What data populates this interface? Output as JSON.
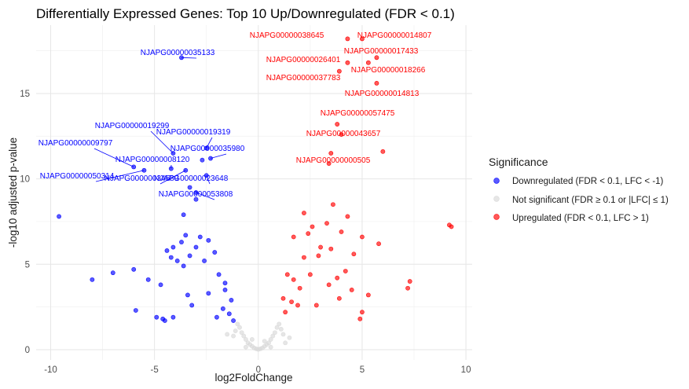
{
  "chart_data": {
    "type": "scatter",
    "title": "Differentially Expressed Genes: Top 10 Up/Downregulated (FDR < 0.1)",
    "xlabel": "log2FoldChange",
    "ylabel": "-log10 adjusted p-value",
    "xlim": [
      -10.7,
      10.3
    ],
    "ylim": [
      -0.6,
      19.0
    ],
    "xticks": [
      -10,
      -5,
      0,
      5,
      10
    ],
    "yticks": [
      0,
      5,
      10,
      15
    ],
    "grid": true,
    "legend_position": "right",
    "legend": {
      "title": "Significance",
      "entries": [
        "Downregulated (FDR < 0.1, LFC < -1)",
        "Not significant (FDR ≥ 0.1 or |LFC| ≤ 1)",
        "Upregulated (FDR < 0.1, LFC > 1)"
      ]
    },
    "colors": {
      "Downregulated": "#0000ff",
      "Not significant": "#d9d9d9",
      "Upregulated": "#ff0000"
    },
    "series": [
      {
        "name": "Downregulated (FDR < 0.1, LFC < -1)",
        "points": [
          [
            -9.6,
            7.8
          ],
          [
            -8.0,
            4.1
          ],
          [
            -7.0,
            4.5
          ],
          [
            -6.0,
            4.7
          ],
          [
            -5.9,
            2.3
          ],
          [
            -5.3,
            4.1
          ],
          [
            -4.9,
            1.9
          ],
          [
            -4.7,
            3.8
          ],
          [
            -4.6,
            1.8
          ],
          [
            -4.5,
            1.7
          ],
          [
            -4.1,
            1.9
          ],
          [
            -4.4,
            5.8
          ],
          [
            -4.1,
            6.0
          ],
          [
            -4.2,
            5.4
          ],
          [
            -3.9,
            5.2
          ],
          [
            -3.7,
            6.3
          ],
          [
            -3.6,
            4.9
          ],
          [
            -3.5,
            6.7
          ],
          [
            -3.3,
            5.5
          ],
          [
            -3.4,
            3.2
          ],
          [
            -3.2,
            2.6
          ],
          [
            -3.0,
            6.0
          ],
          [
            -2.8,
            6.6
          ],
          [
            -2.6,
            5.2
          ],
          [
            -2.4,
            6.4
          ],
          [
            -2.4,
            3.3
          ],
          [
            -2.1,
            5.7
          ],
          [
            -1.9,
            4.4
          ],
          [
            -1.6,
            3.5
          ],
          [
            -1.3,
            2.9
          ],
          [
            -3.3,
            9.5
          ],
          [
            -3.6,
            7.9
          ],
          [
            -3.0,
            8.8
          ],
          [
            -2.7,
            11.1
          ],
          [
            -1.6,
            3.9
          ],
          [
            -1.7,
            2.4
          ],
          [
            -1.4,
            2.1
          ],
          [
            -1.2,
            1.7
          ],
          [
            -2.0,
            1.9
          ]
        ]
      },
      {
        "name": "Upregulated (FDR < 0.1, LFC > 1)",
        "points": [
          [
            9.2,
            7.3
          ],
          [
            9.3,
            7.2
          ],
          [
            7.3,
            4.0
          ],
          [
            7.2,
            3.6
          ],
          [
            6.0,
            11.6
          ],
          [
            5.8,
            6.2
          ],
          [
            5.3,
            3.2
          ],
          [
            5.0,
            6.6
          ],
          [
            5.0,
            2.2
          ],
          [
            4.9,
            1.8
          ],
          [
            4.6,
            5.6
          ],
          [
            4.5,
            3.5
          ],
          [
            4.3,
            7.8
          ],
          [
            4.2,
            4.6
          ],
          [
            4.0,
            6.9
          ],
          [
            3.9,
            3.0
          ],
          [
            3.8,
            4.2
          ],
          [
            3.6,
            8.5
          ],
          [
            3.5,
            5.9
          ],
          [
            3.4,
            3.8
          ],
          [
            3.3,
            7.4
          ],
          [
            3.0,
            6.0
          ],
          [
            2.9,
            5.5
          ],
          [
            2.8,
            2.6
          ],
          [
            2.6,
            7.2
          ],
          [
            2.5,
            4.4
          ],
          [
            2.4,
            6.8
          ],
          [
            2.2,
            5.4
          ],
          [
            2.0,
            3.6
          ],
          [
            1.9,
            2.6
          ],
          [
            1.7,
            4.1
          ],
          [
            1.6,
            2.8
          ],
          [
            1.4,
            4.4
          ],
          [
            1.3,
            2.2
          ],
          [
            1.2,
            3.0
          ],
          [
            3.4,
            10.9
          ],
          [
            1.7,
            6.6
          ],
          [
            2.2,
            8.0
          ]
        ]
      },
      {
        "name": "Not significant (FDR ≥ 0.1 or |LFC| ≤ 1)",
        "points": [
          [
            -1.0,
            1.5
          ],
          [
            -0.9,
            1.3
          ],
          [
            -0.8,
            1.0
          ],
          [
            -0.7,
            0.8
          ],
          [
            -0.6,
            0.6
          ],
          [
            -0.5,
            0.4
          ],
          [
            -0.4,
            0.3
          ],
          [
            -0.3,
            0.2
          ],
          [
            -0.2,
            0.1
          ],
          [
            -0.1,
            0.05
          ],
          [
            0.0,
            0.02
          ],
          [
            0.1,
            0.05
          ],
          [
            0.2,
            0.1
          ],
          [
            0.3,
            0.2
          ],
          [
            0.4,
            0.3
          ],
          [
            0.5,
            0.4
          ],
          [
            0.6,
            0.6
          ],
          [
            0.7,
            0.8
          ],
          [
            0.8,
            1.0
          ],
          [
            0.9,
            1.3
          ],
          [
            1.0,
            1.5
          ],
          [
            1.1,
            1.2
          ],
          [
            1.2,
            0.9
          ],
          [
            -1.1,
            1.1
          ],
          [
            -1.2,
            0.8
          ],
          [
            -0.6,
            0.15
          ],
          [
            0.6,
            0.15
          ],
          [
            -1.5,
            0.9
          ],
          [
            1.5,
            0.7
          ],
          [
            -0.3,
            0.6
          ],
          [
            0.3,
            0.5
          ],
          [
            1.3,
            0.4
          ]
        ]
      }
    ],
    "labels_down": [
      {
        "text": "NJAPG00000035133",
        "x": -3.7,
        "y": 17.1
      },
      {
        "text": "NJAPG00000019299",
        "x": -4.1,
        "y": 11.5
      },
      {
        "text": "NJAPG00000019319",
        "x": -2.5,
        "y": 11.8
      },
      {
        "text": "NJAPG00000009797",
        "x": -6.0,
        "y": 10.7
      },
      {
        "text": "NJAPG00000035980",
        "x": -2.3,
        "y": 11.2
      },
      {
        "text": "NJAPG00000008120",
        "x": -4.2,
        "y": 10.6
      },
      {
        "text": "NJAPG00000050314",
        "x": -5.5,
        "y": 10.5
      },
      {
        "text": "NJAPG00000034589",
        "x": -3.5,
        "y": 10.5
      },
      {
        "text": "NJAPG00000023648",
        "x": -2.5,
        "y": 10.2
      },
      {
        "text": "NJAPG00000053808",
        "x": -3.0,
        "y": 9.2
      }
    ],
    "labels_up": [
      {
        "text": "NJAPG00000038645",
        "x": 4.3,
        "y": 18.2
      },
      {
        "text": "NJAPG00000014807",
        "x": 5.0,
        "y": 18.2
      },
      {
        "text": "NJAPG00000017433",
        "x": 5.7,
        "y": 17.1
      },
      {
        "text": "NJAPG00000026401",
        "x": 4.3,
        "y": 16.8
      },
      {
        "text": "NJAPG00000018266",
        "x": 5.3,
        "y": 16.8
      },
      {
        "text": "NJAPG00000037783",
        "x": 3.9,
        "y": 16.3
      },
      {
        "text": "NJAPG00000014813",
        "x": 5.7,
        "y": 15.6
      },
      {
        "text": "NJAPG00000057475",
        "x": 3.8,
        "y": 13.2
      },
      {
        "text": "NJAPG00000043657",
        "x": 4.0,
        "y": 12.6
      },
      {
        "text": "NJAPG00000000505",
        "x": 3.5,
        "y": 11.5
      }
    ]
  }
}
